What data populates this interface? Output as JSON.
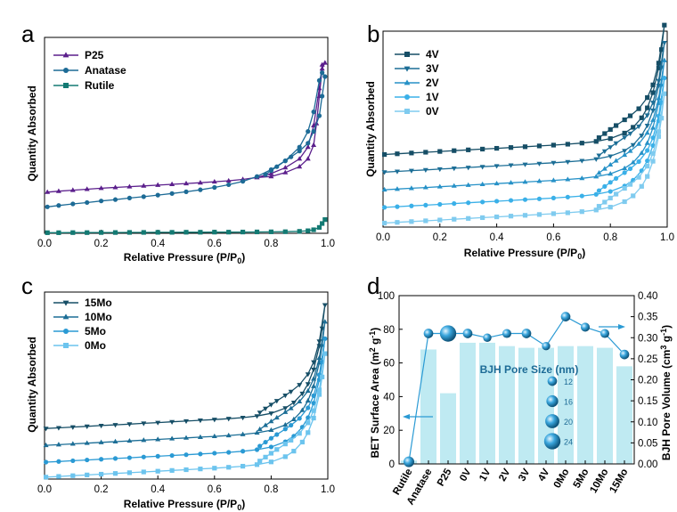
{
  "chart_data": [
    {
      "panel": "a",
      "type": "line",
      "xlabel": "Relative Pressure (P/P0)",
      "ylabel": "Quantity Absorbed",
      "xlim": [
        0.0,
        1.0
      ],
      "ylim": [
        0,
        100
      ],
      "xticks": [
        "0.0",
        "0.2",
        "0.4",
        "0.6",
        "0.8",
        "1.0"
      ],
      "legend": [
        "P25",
        "Anatase",
        "Rutile"
      ],
      "series": [
        {
          "name": "P25",
          "color": "#5b1f8c",
          "marker": "triangle-up",
          "x": [
            0.01,
            0.05,
            0.1,
            0.15,
            0.2,
            0.25,
            0.3,
            0.35,
            0.4,
            0.45,
            0.5,
            0.55,
            0.6,
            0.65,
            0.7,
            0.75,
            0.8,
            0.85,
            0.9,
            0.93,
            0.95,
            0.97,
            0.98,
            0.99,
            0.98,
            0.97,
            0.96,
            0.95,
            0.93,
            0.9,
            0.85,
            0.8,
            0.75
          ],
          "y": [
            21,
            21.5,
            22,
            22.5,
            23,
            23.4,
            23.8,
            24.2,
            24.6,
            25,
            25.4,
            25.8,
            26.3,
            26.8,
            27.5,
            28.5,
            30.5,
            33.5,
            38,
            44,
            55,
            74,
            86,
            87,
            84,
            70,
            56,
            45,
            38,
            34,
            31,
            29,
            28.5
          ]
        },
        {
          "name": "Anatase",
          "color": "#1d6b96",
          "marker": "circle",
          "x": [
            0.01,
            0.05,
            0.1,
            0.15,
            0.2,
            0.25,
            0.3,
            0.35,
            0.4,
            0.45,
            0.5,
            0.55,
            0.6,
            0.65,
            0.7,
            0.75,
            0.8,
            0.85,
            0.9,
            0.93,
            0.95,
            0.97,
            0.98,
            0.99,
            0.98,
            0.97,
            0.95,
            0.93,
            0.9,
            0.87,
            0.85,
            0.82,
            0.8,
            0.78
          ],
          "y": [
            13.5,
            14.2,
            15,
            15.7,
            16.5,
            17.2,
            18,
            18.7,
            19.5,
            20.3,
            21.2,
            22.2,
            23.4,
            24.8,
            26.5,
            29,
            32.5,
            37,
            44,
            52,
            62,
            78,
            82,
            80,
            70,
            60,
            52,
            46,
            42,
            39,
            37,
            34,
            32,
            30
          ]
        },
        {
          "name": "Rutile",
          "color": "#137a73",
          "marker": "square",
          "x": [
            0.01,
            0.05,
            0.1,
            0.15,
            0.2,
            0.25,
            0.3,
            0.35,
            0.4,
            0.45,
            0.5,
            0.55,
            0.6,
            0.65,
            0.7,
            0.75,
            0.8,
            0.85,
            0.9,
            0.93,
            0.95,
            0.97,
            0.98,
            0.99
          ],
          "y": [
            0.3,
            0.3,
            0.35,
            0.35,
            0.4,
            0.4,
            0.45,
            0.45,
            0.5,
            0.5,
            0.55,
            0.55,
            0.6,
            0.6,
            0.65,
            0.7,
            0.75,
            0.8,
            1.0,
            1.3,
            1.8,
            3,
            5,
            7
          ]
        }
      ]
    },
    {
      "panel": "b",
      "type": "line",
      "xlabel": "Relative Pressure (P/P0)",
      "ylabel": "Quantity Absorbed",
      "xlim": [
        0.0,
        1.0
      ],
      "ylim": [
        0,
        100
      ],
      "xticks": [
        "0.0",
        "0.2",
        "0.4",
        "0.6",
        "0.8",
        "1.0"
      ],
      "legend": [
        "4V",
        "3V",
        "2V",
        "1V",
        "0V"
      ],
      "series": [
        {
          "name": "4V",
          "color": "#164e66",
          "marker": "square",
          "offset": 37
        },
        {
          "name": "3V",
          "color": "#1c6e96",
          "marker": "triangle-down",
          "offset": 28
        },
        {
          "name": "2V",
          "color": "#2691c7",
          "marker": "triangle-up",
          "offset": 19
        },
        {
          "name": "1V",
          "color": "#3ab0e8",
          "marker": "circle",
          "offset": 10
        },
        {
          "name": "0V",
          "color": "#7fcbef",
          "marker": "square",
          "offset": 2
        }
      ]
    },
    {
      "panel": "c",
      "type": "line",
      "xlabel": "Relative Pressure (P/P0)",
      "ylabel": "Quantity Absorbed",
      "xlim": [
        0.0,
        1.0
      ],
      "ylim": [
        0,
        100
      ],
      "xticks": [
        "0.0",
        "0.2",
        "0.4",
        "0.6",
        "0.8",
        "1.0"
      ],
      "legend": [
        "15Mo",
        "10Mo",
        "5Mo",
        "0Mo"
      ],
      "series": [
        {
          "name": "15Mo",
          "color": "#164e66",
          "marker": "triangle-down",
          "offset": 27
        },
        {
          "name": "10Mo",
          "color": "#1c6e96",
          "marker": "triangle-up",
          "offset": 18
        },
        {
          "name": "5Mo",
          "color": "#2a9ad4",
          "marker": "circle",
          "offset": 9
        },
        {
          "name": "0Mo",
          "color": "#6cc4ee",
          "marker": "square",
          "offset": 1
        }
      ]
    },
    {
      "panel": "d",
      "type": "bar",
      "categories": [
        "Rutile",
        "Anatase",
        "P25",
        "0V",
        "1V",
        "2V",
        "3V",
        "4V",
        "0Mo",
        "5Mo",
        "10Mo",
        "15Mo"
      ],
      "ylabel": "BET Surface Area (m2 g-1)",
      "ylabel2": "BJH Pore Volume (cm3 g-1)",
      "ylim": [
        0,
        100
      ],
      "ylim2": [
        0.0,
        0.4
      ],
      "yticks": [
        "0",
        "20",
        "40",
        "60",
        "80",
        "100"
      ],
      "yticks2": [
        "0.00",
        "0.05",
        "0.10",
        "0.15",
        "0.20",
        "0.25",
        "0.30",
        "0.35",
        "0.40"
      ],
      "series": [
        {
          "name": "BET Surface Area",
          "axis": "left",
          "color": "#bfeaf2",
          "values": [
            2,
            68,
            42,
            72,
            72,
            70,
            69,
            69,
            70,
            70,
            69,
            58
          ]
        },
        {
          "name": "BJH Pore Volume",
          "axis": "right",
          "color": "#2a9ad4",
          "values": [
            0.005,
            0.31,
            0.31,
            0.31,
            0.3,
            0.31,
            0.31,
            0.28,
            0.35,
            0.325,
            0.31,
            0.26
          ]
        }
      ],
      "pore_size_nm": [
        14,
        12,
        24,
        12,
        10,
        11,
        12,
        10,
        12,
        11,
        11,
        12
      ],
      "pore_legend_title": "BJH Pore Size (nm)",
      "pore_legend": [
        "12",
        "16",
        "20",
        "24"
      ]
    }
  ]
}
